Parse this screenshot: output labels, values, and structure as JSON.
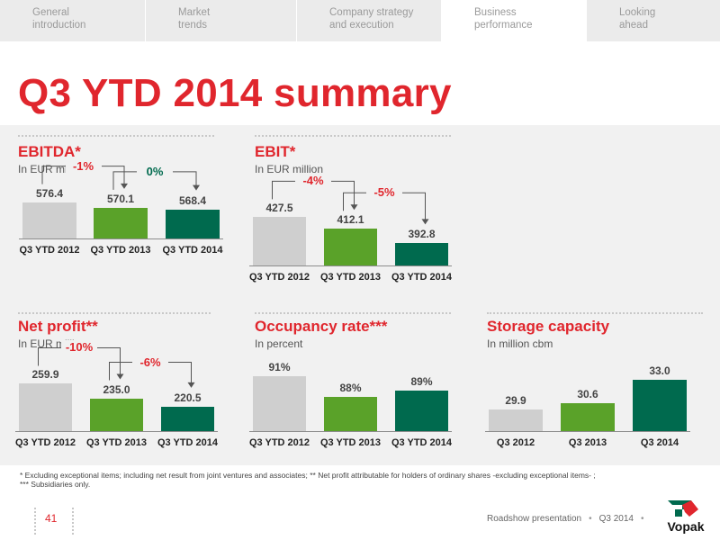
{
  "nav": {
    "tabs": [
      {
        "line1": "General",
        "line2": "introduction"
      },
      {
        "line1": "Market",
        "line2": "trends"
      },
      {
        "line1": "Company strategy",
        "line2": "and execution"
      },
      {
        "line1": "Business",
        "line2": "performance"
      },
      {
        "line1": "Looking",
        "line2": "ahead"
      }
    ],
    "active_index": 3
  },
  "title": "Q3 YTD 2014 summary",
  "colors": {
    "brand_red": "#e0262d",
    "bar_grey": "#cfcfcf",
    "bar_green": "#5aa229",
    "bar_dark_green": "#006a4e",
    "band_bg": "#f1f1f1"
  },
  "chart_data": [
    {
      "type": "bar",
      "title": "EBITDA*",
      "subtitle": "In EUR million",
      "categories": [
        "Q3 YTD 2012",
        "Q3 YTD 2013",
        "Q3 YTD 2014"
      ],
      "values": [
        576.4,
        570.1,
        568.4
      ],
      "value_labels": [
        "576.4",
        "570.1",
        "568.4"
      ],
      "changes": [
        "-1%",
        "0%"
      ]
    },
    {
      "type": "bar",
      "title": "EBIT*",
      "subtitle": "In EUR million",
      "categories": [
        "Q3 YTD 2012",
        "Q3 YTD 2013",
        "Q3 YTD 2014"
      ],
      "values": [
        427.5,
        412.1,
        392.8
      ],
      "value_labels": [
        "427.5",
        "412.1",
        "392.8"
      ],
      "changes": [
        "-4%",
        "-5%"
      ]
    },
    {
      "type": "bar",
      "title": "Net profit**",
      "subtitle": "In EUR million",
      "categories": [
        "Q3 YTD 2012",
        "Q3 YTD 2013",
        "Q3 YTD 2014"
      ],
      "values": [
        259.9,
        235.0,
        220.5
      ],
      "value_labels": [
        "259.9",
        "235.0",
        "220.5"
      ],
      "changes": [
        "-10%",
        "-6%"
      ]
    },
    {
      "type": "bar",
      "title": "Occupancy rate***",
      "subtitle": "In percent",
      "categories": [
        "Q3 YTD 2012",
        "Q3 YTD 2013",
        "Q3 YTD 2014"
      ],
      "values": [
        91,
        88,
        89
      ],
      "value_labels": [
        "91%",
        "88%",
        "89%"
      ],
      "changes": []
    },
    {
      "type": "bar",
      "title": "Storage capacity",
      "subtitle": "In million cbm",
      "categories": [
        "Q3 2012",
        "Q3 2013",
        "Q3 2014"
      ],
      "values": [
        29.9,
        30.6,
        33.0
      ],
      "value_labels": [
        "29.9",
        "30.6",
        "33.0"
      ],
      "changes": []
    }
  ],
  "footnote": {
    "line1": "* Excluding exceptional items; including net result from joint ventures and associates; ** Net profit attributable for holders  of ordinary shares -excluding exceptional items- ;",
    "line2": "*** Subsidiaries only."
  },
  "footer": {
    "page_number": "41",
    "presentation": "Roadshow presentation",
    "period": "Q3 2014",
    "logo_text": "Vopak"
  }
}
